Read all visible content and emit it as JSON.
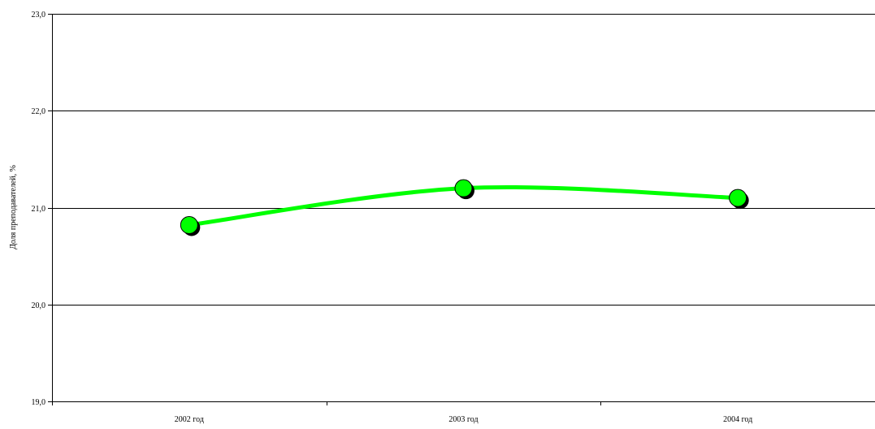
{
  "chart_data": {
    "type": "line",
    "categories": [
      "2002 год",
      "2003 год",
      "2004 год"
    ],
    "series": [
      {
        "values": [
          20.82,
          21.2,
          21.1
        ],
        "color": "#00ff00"
      }
    ],
    "ylabel": "Доля преподавателей, %",
    "xlabel": "",
    "ylim": [
      19.0,
      23.0
    ],
    "yticks": [
      19.0,
      20.0,
      21.0,
      22.0,
      23.0
    ],
    "ytick_labels": [
      "19,0",
      "20,0",
      "21,0",
      "22,0",
      "23,0"
    ],
    "grid": true,
    "smooth": true,
    "marker_color": "#00ff00",
    "marker_shadow_color": "#000000"
  }
}
